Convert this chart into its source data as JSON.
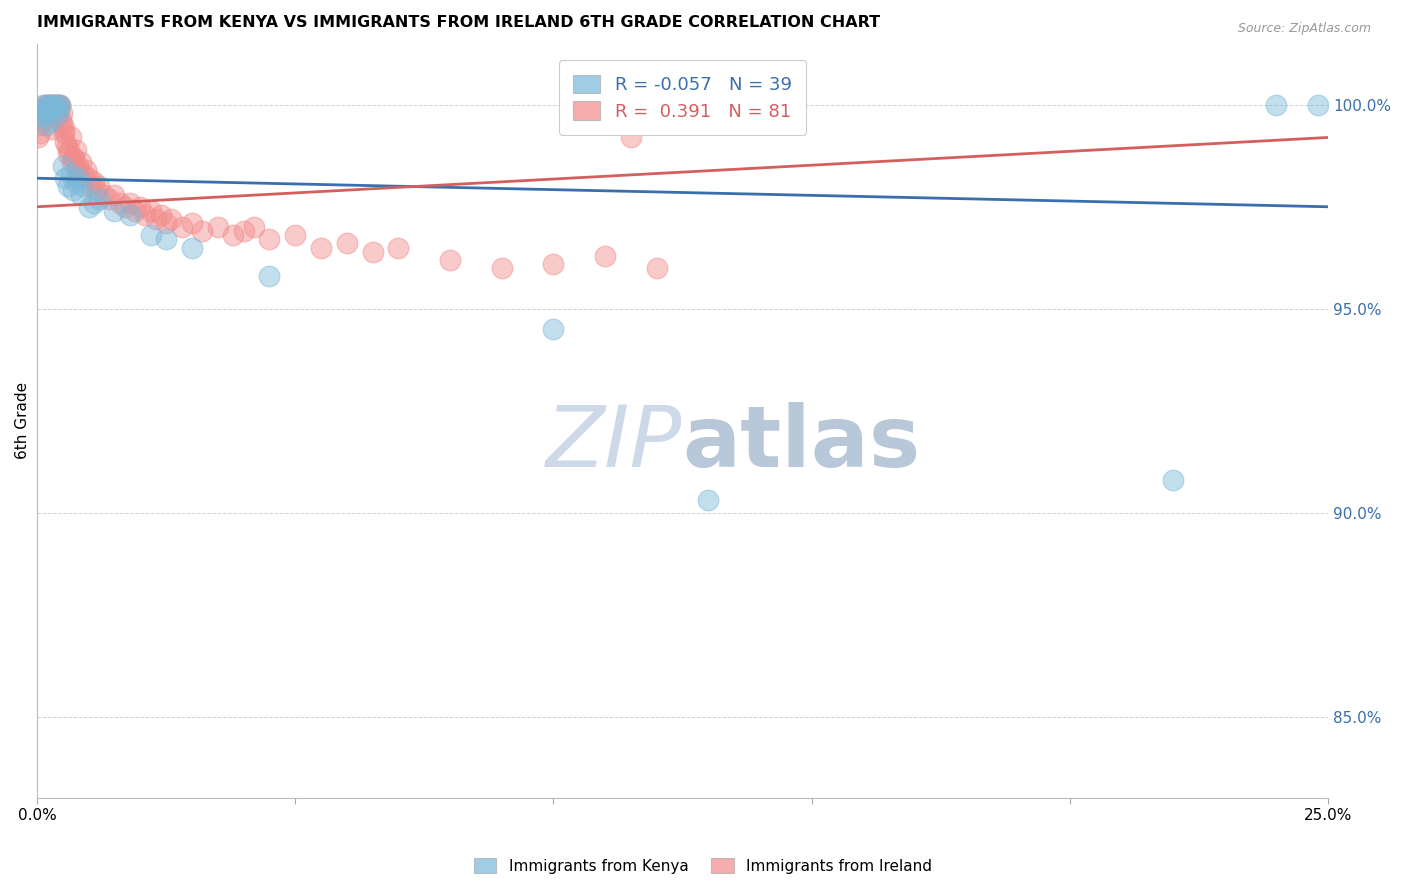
{
  "title": "IMMIGRANTS FROM KENYA VS IMMIGRANTS FROM IRELAND 6TH GRADE CORRELATION CHART",
  "source": "Source: ZipAtlas.com",
  "ylabel": "6th Grade",
  "yticks": [
    85.0,
    90.0,
    95.0,
    100.0
  ],
  "ytick_labels": [
    "85.0%",
    "90.0%",
    "95.0%",
    "100.0%"
  ],
  "xlim": [
    0.0,
    25.0
  ],
  "ylim": [
    83.0,
    101.5
  ],
  "kenya_color": "#7ab8d9",
  "ireland_color": "#f28b8b",
  "kenya_R": -0.057,
  "kenya_N": 39,
  "ireland_R": 0.391,
  "ireland_N": 81,
  "kenya_line_x": [
    0,
    25
  ],
  "kenya_line_y": [
    98.2,
    97.5
  ],
  "ireland_line_x": [
    0,
    25
  ],
  "ireland_line_y": [
    97.5,
    99.2
  ],
  "kenya_line_color": "#3a6fad",
  "ireland_line_color": "#d45f5f",
  "kenya_scatter": [
    [
      0.05,
      99.9
    ],
    [
      0.08,
      99.7
    ],
    [
      0.1,
      99.8
    ],
    [
      0.12,
      100.0
    ],
    [
      0.15,
      99.9
    ],
    [
      0.18,
      99.5
    ],
    [
      0.2,
      100.0
    ],
    [
      0.22,
      99.8
    ],
    [
      0.25,
      100.0
    ],
    [
      0.28,
      99.6
    ],
    [
      0.3,
      100.0
    ],
    [
      0.35,
      100.0
    ],
    [
      0.38,
      99.9
    ],
    [
      0.4,
      100.0
    ],
    [
      0.42,
      99.8
    ],
    [
      0.45,
      100.0
    ],
    [
      0.5,
      98.5
    ],
    [
      0.55,
      98.2
    ],
    [
      0.6,
      98.0
    ],
    [
      0.65,
      98.3
    ],
    [
      0.7,
      97.9
    ],
    [
      0.75,
      98.1
    ],
    [
      0.8,
      98.2
    ],
    [
      0.85,
      97.8
    ],
    [
      0.9,
      98.0
    ],
    [
      1.0,
      97.5
    ],
    [
      1.1,
      97.6
    ],
    [
      1.2,
      97.7
    ],
    [
      1.5,
      97.4
    ],
    [
      1.8,
      97.3
    ],
    [
      2.2,
      96.8
    ],
    [
      2.5,
      96.7
    ],
    [
      3.0,
      96.5
    ],
    [
      4.5,
      95.8
    ],
    [
      10.0,
      94.5
    ],
    [
      13.0,
      90.3
    ],
    [
      22.0,
      90.8
    ],
    [
      24.0,
      100.0
    ],
    [
      24.8,
      100.0
    ]
  ],
  "ireland_scatter": [
    [
      0.02,
      99.2
    ],
    [
      0.04,
      99.5
    ],
    [
      0.06,
      99.3
    ],
    [
      0.08,
      99.8
    ],
    [
      0.1,
      99.9
    ],
    [
      0.12,
      99.6
    ],
    [
      0.15,
      100.0
    ],
    [
      0.18,
      99.8
    ],
    [
      0.2,
      100.0
    ],
    [
      0.22,
      100.0
    ],
    [
      0.25,
      100.0
    ],
    [
      0.28,
      100.0
    ],
    [
      0.3,
      100.0
    ],
    [
      0.33,
      100.0
    ],
    [
      0.35,
      100.0
    ],
    [
      0.38,
      100.0
    ],
    [
      0.4,
      100.0
    ],
    [
      0.42,
      100.0
    ],
    [
      0.45,
      100.0
    ],
    [
      0.48,
      99.8
    ],
    [
      0.5,
      99.5
    ],
    [
      0.52,
      99.3
    ],
    [
      0.55,
      99.1
    ],
    [
      0.58,
      99.0
    ],
    [
      0.6,
      98.8
    ],
    [
      0.65,
      99.2
    ],
    [
      0.7,
      98.7
    ],
    [
      0.75,
      98.9
    ],
    [
      0.8,
      98.5
    ],
    [
      0.85,
      98.6
    ],
    [
      0.9,
      98.3
    ],
    [
      0.95,
      98.4
    ],
    [
      1.0,
      98.2
    ],
    [
      1.05,
      98.0
    ],
    [
      1.1,
      98.1
    ],
    [
      1.15,
      97.9
    ],
    [
      1.2,
      98.0
    ],
    [
      1.3,
      97.8
    ],
    [
      1.4,
      97.7
    ],
    [
      1.5,
      97.8
    ],
    [
      1.6,
      97.6
    ],
    [
      1.7,
      97.5
    ],
    [
      1.8,
      97.6
    ],
    [
      1.9,
      97.4
    ],
    [
      2.0,
      97.5
    ],
    [
      2.1,
      97.3
    ],
    [
      2.2,
      97.4
    ],
    [
      2.3,
      97.2
    ],
    [
      2.4,
      97.3
    ],
    [
      2.5,
      97.1
    ],
    [
      2.6,
      97.2
    ],
    [
      2.8,
      97.0
    ],
    [
      3.0,
      97.1
    ],
    [
      3.2,
      96.9
    ],
    [
      3.5,
      97.0
    ],
    [
      3.8,
      96.8
    ],
    [
      4.0,
      96.9
    ],
    [
      4.2,
      97.0
    ],
    [
      4.5,
      96.7
    ],
    [
      5.0,
      96.8
    ],
    [
      5.5,
      96.5
    ],
    [
      6.0,
      96.6
    ],
    [
      6.5,
      96.4
    ],
    [
      7.0,
      96.5
    ],
    [
      8.0,
      96.2
    ],
    [
      9.0,
      96.0
    ],
    [
      10.0,
      96.1
    ],
    [
      11.0,
      96.3
    ],
    [
      12.0,
      96.0
    ],
    [
      0.32,
      99.4
    ],
    [
      0.36,
      99.7
    ],
    [
      0.43,
      99.9
    ],
    [
      0.47,
      99.6
    ],
    [
      0.53,
      99.4
    ],
    [
      0.62,
      98.9
    ],
    [
      0.68,
      98.6
    ],
    [
      0.72,
      98.7
    ],
    [
      0.78,
      98.4
    ],
    [
      0.82,
      98.3
    ],
    [
      11.5,
      99.2
    ]
  ],
  "watermark_text_1": "ZIP",
  "watermark_text_2": "atlas",
  "watermark_color": "#cdd8e8"
}
